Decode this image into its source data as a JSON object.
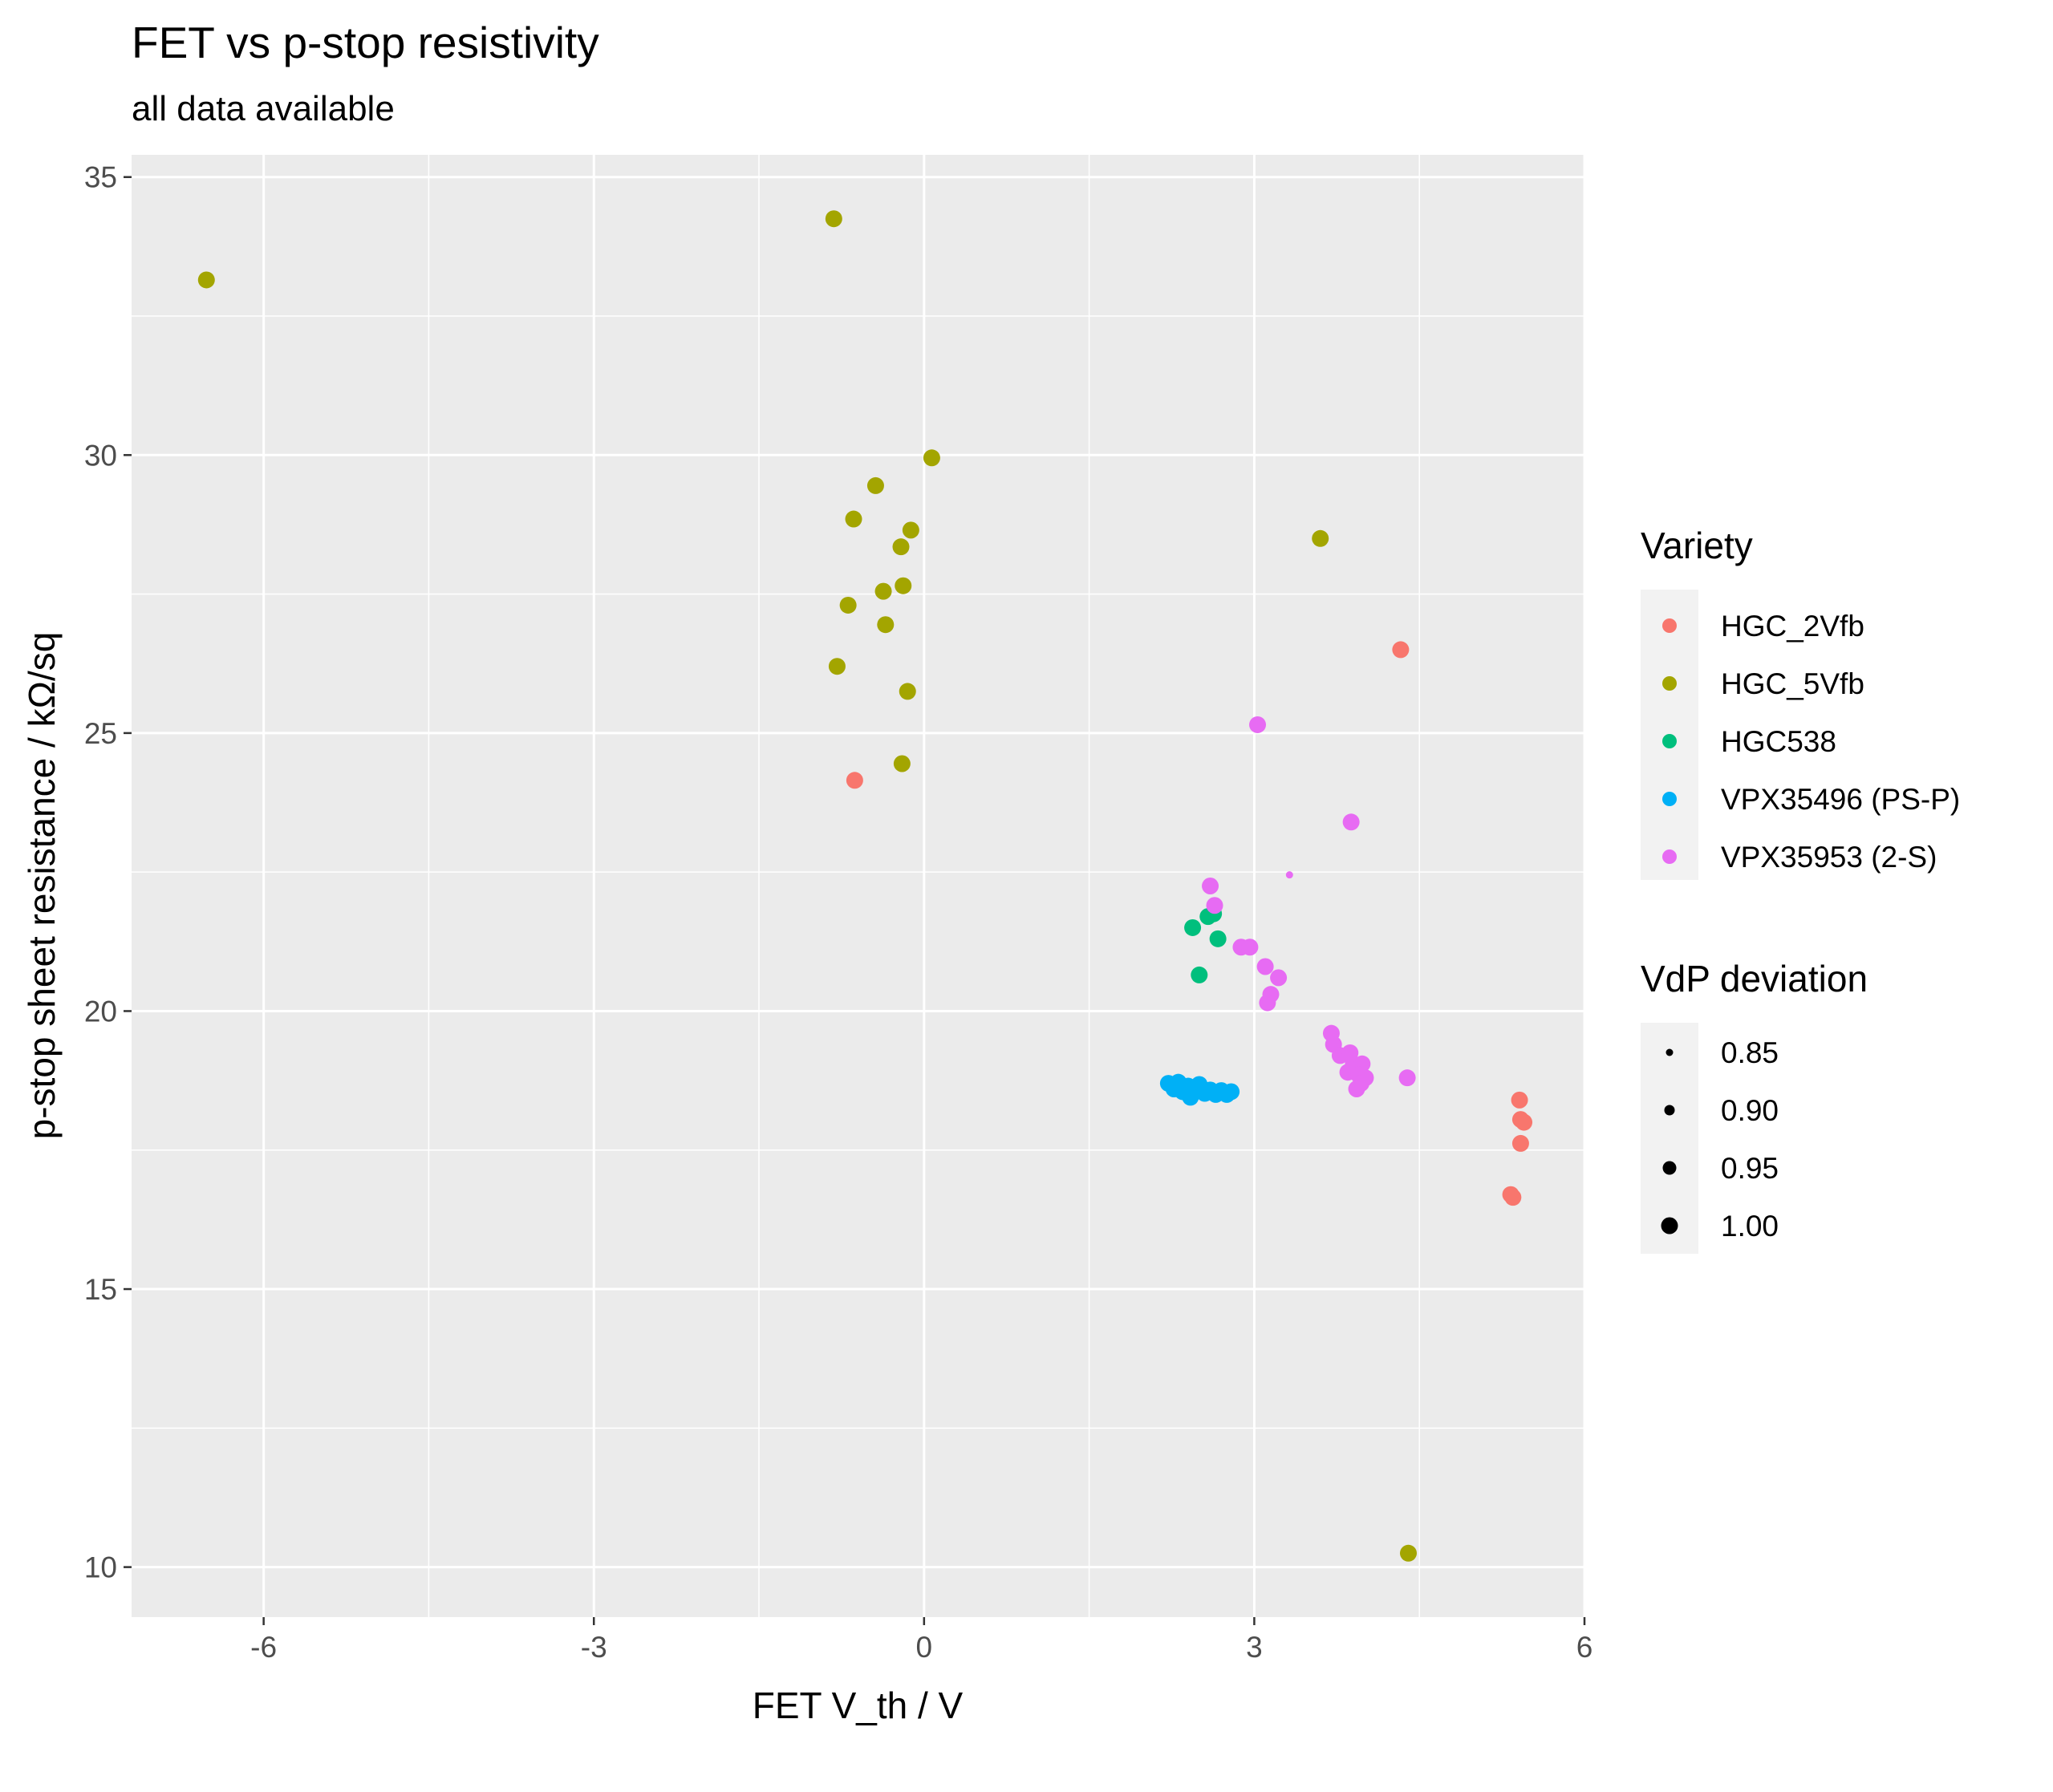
{
  "chart_data": {
    "type": "scatter",
    "title": "FET vs p-stop resistivity",
    "subtitle": "all data available",
    "xlabel": "FET V_th / V",
    "ylabel": "p-stop sheet resistance / kΩ/sq",
    "xlim": [
      -7.2,
      6.0
    ],
    "ylim": [
      9.1,
      35.4
    ],
    "x_ticks": [
      -6,
      -3,
      0,
      3,
      6
    ],
    "x_tick_labels": [
      "-6",
      "-3",
      "0",
      "3",
      "6"
    ],
    "y_ticks": [
      10,
      15,
      20,
      25,
      30,
      35
    ],
    "y_tick_labels": [
      "10",
      "15",
      "20",
      "25",
      "30",
      "35"
    ],
    "grid": true,
    "background": "#ebebeb",
    "legend_placement": "right",
    "color_legend": {
      "title": "Variety",
      "entries": [
        {
          "name": "HGC_2Vfb",
          "color": "#f8766d"
        },
        {
          "name": "HGC_5Vfb",
          "color": "#a3a500"
        },
        {
          "name": "HGC538",
          "color": "#00bf7d"
        },
        {
          "name": "VPX35496 (PS-P)",
          "color": "#00b0f6"
        },
        {
          "name": "VPX35953 (2-S)",
          "color": "#e76bf3"
        }
      ]
    },
    "size_legend": {
      "title": "VdP deviation",
      "entries": [
        {
          "label": "0.85",
          "value": 0.85
        },
        {
          "label": "0.90",
          "value": 0.9
        },
        {
          "label": "0.95",
          "value": 0.95
        },
        {
          "label": "1.00",
          "value": 1.0
        }
      ]
    },
    "series": [
      {
        "name": "HGC_2Vfb",
        "color": "#f8766d",
        "points": [
          {
            "x": -0.63,
            "y": 24.15,
            "s": 1.0
          },
          {
            "x": 4.33,
            "y": 26.5,
            "s": 1.0
          },
          {
            "x": 5.41,
            "y": 18.4,
            "s": 1.0
          },
          {
            "x": 5.42,
            "y": 18.05,
            "s": 1.0
          },
          {
            "x": 5.45,
            "y": 18.0,
            "s": 1.0
          },
          {
            "x": 5.42,
            "y": 17.62,
            "s": 1.0
          },
          {
            "x": 5.33,
            "y": 16.7,
            "s": 1.0
          },
          {
            "x": 5.35,
            "y": 16.65,
            "s": 1.0
          }
        ]
      },
      {
        "name": "HGC_5Vfb",
        "color": "#a3a500",
        "points": [
          {
            "x": -6.52,
            "y": 33.15,
            "s": 1.0
          },
          {
            "x": -0.82,
            "y": 34.25,
            "s": 1.0
          },
          {
            "x": 0.07,
            "y": 29.95,
            "s": 1.0
          },
          {
            "x": -0.44,
            "y": 29.45,
            "s": 1.0
          },
          {
            "x": -0.64,
            "y": 28.85,
            "s": 1.0
          },
          {
            "x": -0.12,
            "y": 28.65,
            "s": 1.0
          },
          {
            "x": -0.21,
            "y": 28.35,
            "s": 1.0
          },
          {
            "x": -0.19,
            "y": 27.65,
            "s": 1.0
          },
          {
            "x": -0.37,
            "y": 27.55,
            "s": 1.0
          },
          {
            "x": -0.69,
            "y": 27.3,
            "s": 1.0
          },
          {
            "x": -0.35,
            "y": 26.95,
            "s": 1.0
          },
          {
            "x": -0.79,
            "y": 26.2,
            "s": 1.0
          },
          {
            "x": -0.15,
            "y": 25.75,
            "s": 1.0
          },
          {
            "x": -0.2,
            "y": 24.45,
            "s": 1.0
          },
          {
            "x": 3.6,
            "y": 28.5,
            "s": 1.0
          },
          {
            "x": 4.4,
            "y": 10.25,
            "s": 1.0
          }
        ]
      },
      {
        "name": "HGC538",
        "color": "#00bf7d",
        "points": [
          {
            "x": 2.63,
            "y": 21.75,
            "s": 1.0
          },
          {
            "x": 2.58,
            "y": 21.7,
            "s": 1.0
          },
          {
            "x": 2.44,
            "y": 21.5,
            "s": 1.0
          },
          {
            "x": 2.67,
            "y": 21.3,
            "s": 1.0
          },
          {
            "x": 2.5,
            "y": 20.65,
            "s": 1.0
          }
        ]
      },
      {
        "name": "VPX35496 (PS-P)",
        "color": "#00b0f6",
        "points": [
          {
            "x": 2.22,
            "y": 18.7,
            "s": 1.0
          },
          {
            "x": 2.27,
            "y": 18.6,
            "s": 1.0
          },
          {
            "x": 2.31,
            "y": 18.72,
            "s": 1.0
          },
          {
            "x": 2.35,
            "y": 18.55,
            "s": 1.0
          },
          {
            "x": 2.4,
            "y": 18.65,
            "s": 1.0
          },
          {
            "x": 2.42,
            "y": 18.45,
            "s": 1.0
          },
          {
            "x": 2.46,
            "y": 18.6,
            "s": 1.0
          },
          {
            "x": 2.5,
            "y": 18.68,
            "s": 1.0
          },
          {
            "x": 2.55,
            "y": 18.52,
            "s": 1.0
          },
          {
            "x": 2.6,
            "y": 18.58,
            "s": 1.0
          },
          {
            "x": 2.65,
            "y": 18.5,
            "s": 1.0
          },
          {
            "x": 2.7,
            "y": 18.57,
            "s": 1.0
          },
          {
            "x": 2.75,
            "y": 18.5,
            "s": 1.0
          },
          {
            "x": 2.79,
            "y": 18.55,
            "s": 1.0
          }
        ]
      },
      {
        "name": "VPX35953 (2-S)",
        "color": "#e76bf3",
        "points": [
          {
            "x": 3.03,
            "y": 25.15,
            "s": 1.0
          },
          {
            "x": 3.88,
            "y": 23.4,
            "s": 1.0
          },
          {
            "x": 3.32,
            "y": 22.45,
            "s": 0.85
          },
          {
            "x": 2.6,
            "y": 22.25,
            "s": 1.0
          },
          {
            "x": 2.64,
            "y": 21.9,
            "s": 1.0
          },
          {
            "x": 2.88,
            "y": 21.15,
            "s": 1.0
          },
          {
            "x": 2.96,
            "y": 21.15,
            "s": 1.0
          },
          {
            "x": 3.1,
            "y": 20.8,
            "s": 1.0
          },
          {
            "x": 3.22,
            "y": 20.6,
            "s": 1.0
          },
          {
            "x": 3.15,
            "y": 20.3,
            "s": 1.0
          },
          {
            "x": 3.12,
            "y": 20.15,
            "s": 1.0
          },
          {
            "x": 3.7,
            "y": 19.6,
            "s": 1.0
          },
          {
            "x": 3.72,
            "y": 19.4,
            "s": 1.0
          },
          {
            "x": 3.78,
            "y": 19.2,
            "s": 1.0
          },
          {
            "x": 3.87,
            "y": 19.25,
            "s": 1.0
          },
          {
            "x": 3.9,
            "y": 19.05,
            "s": 1.0
          },
          {
            "x": 3.98,
            "y": 19.05,
            "s": 1.0
          },
          {
            "x": 3.85,
            "y": 18.9,
            "s": 1.0
          },
          {
            "x": 3.95,
            "y": 18.85,
            "s": 1.0
          },
          {
            "x": 4.01,
            "y": 18.8,
            "s": 1.0
          },
          {
            "x": 3.97,
            "y": 18.7,
            "s": 1.0
          },
          {
            "x": 3.93,
            "y": 18.6,
            "s": 1.0
          },
          {
            "x": 4.39,
            "y": 18.8,
            "s": 1.0
          }
        ]
      }
    ]
  }
}
